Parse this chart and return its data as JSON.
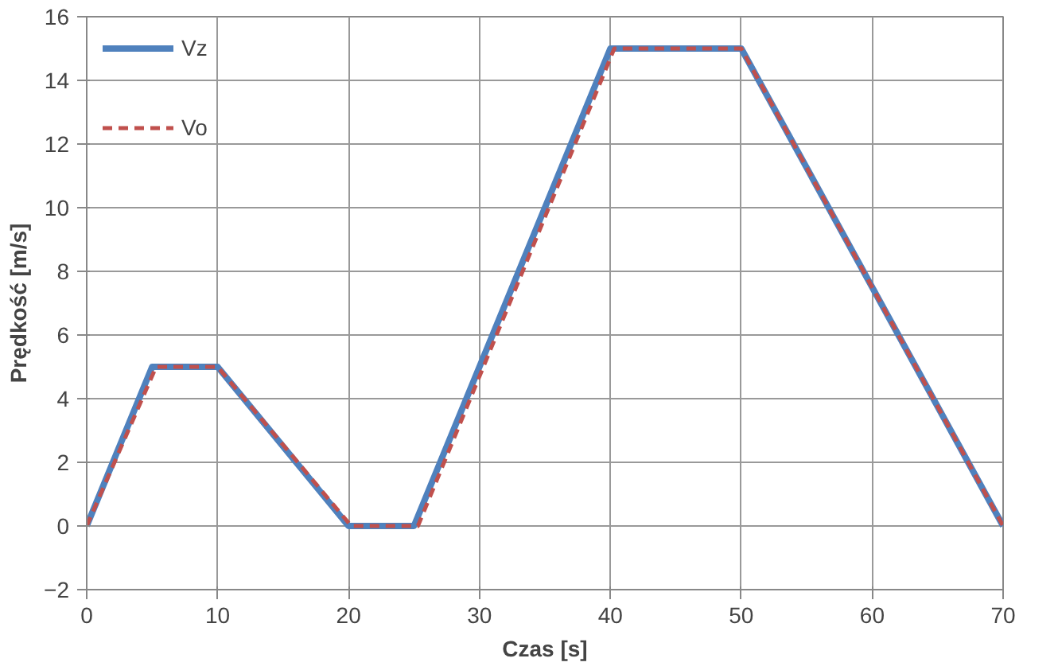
{
  "chart_data": {
    "type": "line",
    "xlabel": "Czas [s]",
    "ylabel": "Prędkość [m/s]",
    "xlim": [
      0,
      70
    ],
    "xticks": [
      0,
      10,
      20,
      30,
      40,
      50,
      60,
      70
    ],
    "ylim": [
      -2,
      16
    ],
    "yticks": [
      -2,
      0,
      2,
      4,
      6,
      8,
      10,
      12,
      14,
      16
    ],
    "grid": true,
    "legend": "top left",
    "series": [
      {
        "name": "Vz",
        "color": "#4f81bd",
        "line_style": "solid",
        "x": [
          0,
          5,
          10,
          20,
          25,
          40,
          50,
          70
        ],
        "values": [
          0,
          5,
          5,
          0,
          0,
          15,
          15,
          0
        ]
      },
      {
        "name": "Vo",
        "color": "#c0504d",
        "line_style": "dashed",
        "x": [
          0,
          5.3,
          10,
          20.2,
          25.3,
          40.3,
          50,
          70
        ],
        "values": [
          0,
          5,
          5,
          0,
          0,
          15,
          15,
          0
        ]
      }
    ]
  }
}
